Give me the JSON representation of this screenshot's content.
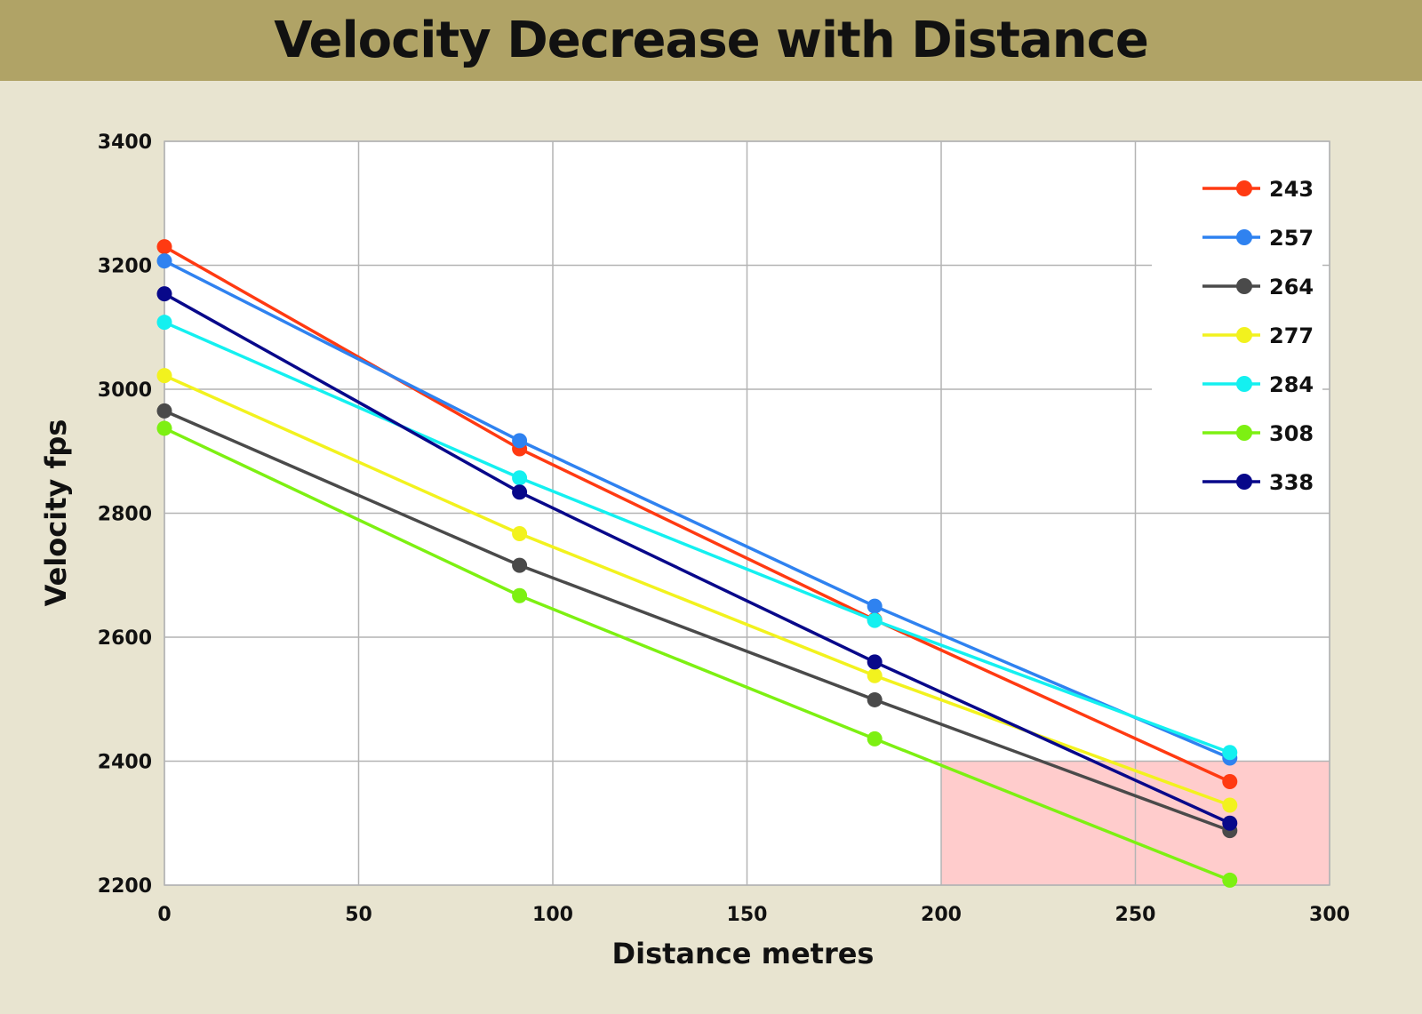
{
  "chart_data": {
    "type": "line",
    "title": "Velocity Decrease with Distance",
    "xlabel": "Distance metres",
    "ylabel": "Velocity fps",
    "xlim": [
      0,
      300
    ],
    "ylim": [
      2200,
      3400
    ],
    "xticks": [
      0,
      50,
      100,
      150,
      200,
      250,
      300
    ],
    "yticks": [
      2200,
      2400,
      2600,
      2800,
      3000,
      3200,
      3400
    ],
    "grid": true,
    "legend_position": "top-right",
    "x": [
      0,
      91.44,
      182.88,
      274.32
    ],
    "highlight_region": {
      "x": [
        200,
        300
      ],
      "y": [
        2200,
        2400
      ],
      "color": "#ffcccc"
    },
    "series": [
      {
        "name": "243",
        "color": "#ff3a12",
        "values": [
          3230,
          2904,
          2628,
          2367
        ]
      },
      {
        "name": "257",
        "color": "#2f82f0",
        "values": [
          3207,
          2917,
          2650,
          2405
        ]
      },
      {
        "name": "264",
        "color": "#4a4a4a",
        "values": [
          2965,
          2716,
          2499,
          2288
        ]
      },
      {
        "name": "277",
        "color": "#f2f21e",
        "values": [
          3022,
          2767,
          2538,
          2329
        ]
      },
      {
        "name": "284",
        "color": "#14f0f0",
        "values": [
          3108,
          2857,
          2627,
          2414
        ]
      },
      {
        "name": "308",
        "color": "#7df012",
        "values": [
          2937,
          2667,
          2436,
          2208
        ]
      },
      {
        "name": "338",
        "color": "#08088a",
        "values": [
          3154,
          2834,
          2560,
          2300
        ]
      }
    ]
  }
}
